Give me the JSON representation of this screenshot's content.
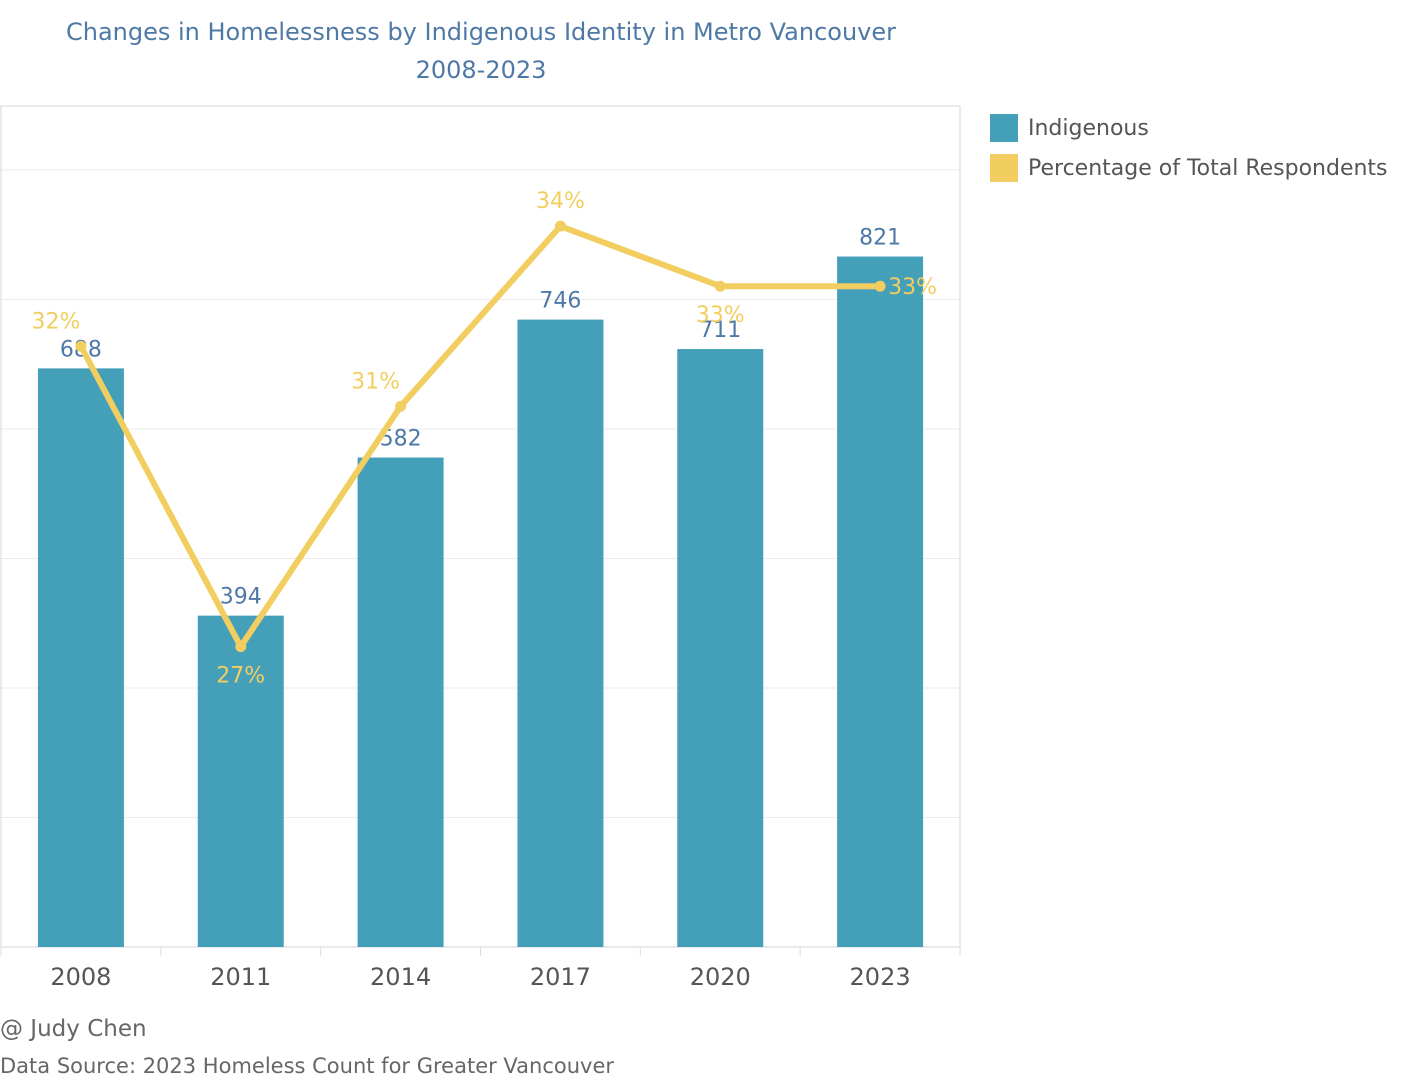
{
  "chart_data": {
    "type": "bar",
    "title": "Changes in Homelessness by Indigenous Identity in Metro Vancouver",
    "subtitle": "2008-2023",
    "categories": [
      "2008",
      "2011",
      "2014",
      "2017",
      "2020",
      "2023"
    ],
    "series": [
      {
        "name": "Indigenous",
        "type": "bar",
        "values": [
          688,
          394,
          582,
          746,
          711,
          821
        ],
        "labels": [
          "688",
          "394",
          "582",
          "746",
          "711",
          "821"
        ],
        "color": "#449fb8"
      },
      {
        "name": "Percentage of Total Respondents",
        "type": "line",
        "values": [
          32,
          27,
          31,
          34,
          33,
          33
        ],
        "labels": [
          "32%",
          "27%",
          "31%",
          "34%",
          "33%",
          "33%"
        ],
        "color": "#f2ce60"
      }
    ],
    "bar_axis_range": [
      0,
      1000
    ],
    "line_axis_range": [
      22,
      36
    ],
    "grid": true,
    "legend_placement": "top-right"
  },
  "legend": {
    "items": [
      {
        "label": "Indigenous",
        "color": "#449fb8"
      },
      {
        "label": "Percentage of Total Respondents",
        "color": "#f2ce60"
      }
    ]
  },
  "footer": {
    "credit": "@ Judy Chen",
    "source": "Data Source: 2023 Homeless Count for Greater Vancouver"
  },
  "colors": {
    "title": "#4e79a7",
    "bar_label": "#4e79a7",
    "axis_text": "#555555"
  }
}
